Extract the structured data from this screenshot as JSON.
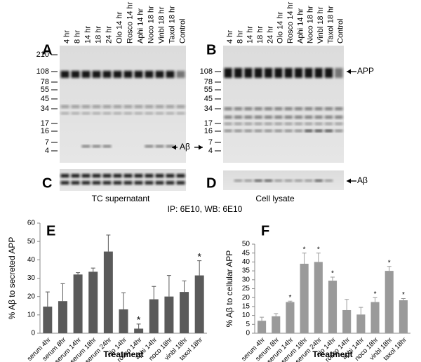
{
  "figure": {
    "caption": "IP: 6E10, WB: 6E10"
  },
  "blots": [
    {
      "panel": "A",
      "lanes": [
        "4 hr",
        "8 hr",
        "14 hr",
        "18 hr",
        "24 hr",
        "Olo 14 hr",
        "Rosco 14 hr",
        "Aphi 14 hr",
        "Noco 18 hr",
        "Vinbl 18 hr",
        "Taxol 18 hr",
        "Control"
      ],
      "markers": [
        210,
        108,
        78,
        55,
        45,
        34,
        17,
        16,
        7,
        4
      ],
      "annotation": "Aβ"
    },
    {
      "panel": "B",
      "lanes": [
        "4 hr",
        "8 hr",
        "14 hr",
        "18 hr",
        "24 hr",
        "Olo 14 hr",
        "Rosco 14 hr",
        "Aphi 14 hr",
        "Noco 18 hr",
        "Vinbl 18 hr",
        "Taxol 18 hr",
        "Control"
      ],
      "markers": [
        108,
        78,
        55,
        45,
        34,
        17,
        16,
        7,
        4
      ],
      "annotation": "APP"
    },
    {
      "panel": "C",
      "caption": "TC supernatant"
    },
    {
      "panel": "D",
      "caption": "Cell lysate",
      "annotation": "Aβ"
    }
  ],
  "chart_data": [
    {
      "type": "bar",
      "panel": "E",
      "y_label": "% Aβ to secreted APP",
      "x_label": "Treatment",
      "categories": [
        "serum 4hr",
        "serum 8hr",
        "serum 14hr",
        "serum 18hr",
        "serum 24hr",
        "olo 14hr",
        "rosco 14hr",
        "aphi 14hr",
        "noco 18hr",
        "vinbl 18hr",
        "taxol 18hr"
      ],
      "values": [
        14.5,
        17.5,
        32,
        33.5,
        44.5,
        13,
        2.5,
        18.5,
        20,
        22.5,
        31.5
      ],
      "errors": [
        8,
        9.5,
        1,
        2,
        9,
        9,
        2.5,
        7,
        11.5,
        6,
        8
      ],
      "annotations": [
        null,
        null,
        null,
        null,
        null,
        null,
        "*",
        null,
        null,
        null,
        "*"
      ],
      "color": "#5a5a5a",
      "ylim": [
        0,
        60
      ],
      "yticks": [
        0,
        10,
        20,
        30,
        40,
        50,
        60
      ],
      "grid": false
    },
    {
      "type": "bar",
      "panel": "F",
      "y_label": "% Aβ to cellular APP",
      "x_label": "Treatment",
      "categories": [
        "serum 4hr",
        "serum 8hr",
        "serum 14hr",
        "serum 18hr",
        "serum 24hr",
        "olo 14hr",
        "rosco 14hr",
        "aphi 14hr",
        "noco 18hr",
        "vinbl 18hr",
        "taxol 18hr"
      ],
      "values": [
        7,
        9.5,
        17.5,
        39,
        40,
        29.5,
        13,
        10.5,
        17.5,
        35,
        18.5
      ],
      "errors": [
        2,
        1.5,
        0.5,
        6,
        5,
        2,
        6,
        4,
        2.5,
        2.5,
        1
      ],
      "annotations": [
        null,
        null,
        "*",
        "*",
        "*",
        "*",
        null,
        null,
        "*",
        "*",
        "*"
      ],
      "color": "#9a9a9a",
      "ylim": [
        0,
        50
      ],
      "yticks": [
        0,
        5,
        10,
        15,
        20,
        25,
        30,
        35,
        40,
        45,
        50
      ],
      "grid": false
    }
  ]
}
